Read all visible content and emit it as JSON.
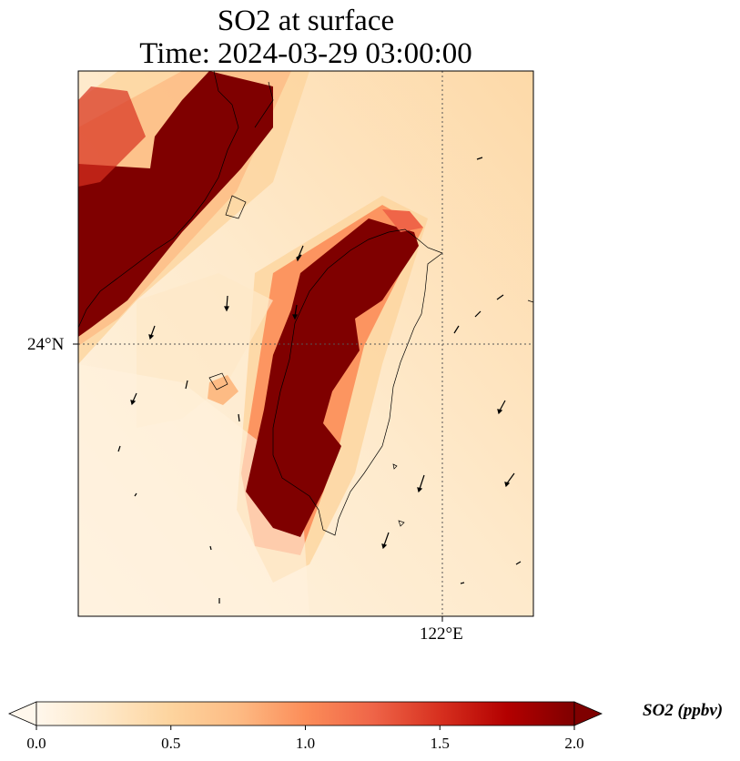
{
  "title": {
    "line1": "SO2 at surface",
    "line2": "Time: 2024-03-29 03:00:00"
  },
  "axes": {
    "lat_tick_label": "24°N",
    "lon_tick_label": "122°E",
    "gridlines": "dotted",
    "coastlines": true
  },
  "chart_data": {
    "type": "heatmap",
    "variable": "SO2",
    "colormap": "OrRd",
    "colormap_stops": [
      "#fff7ec",
      "#fee8c8",
      "#fdd49e",
      "#fdbb84",
      "#fc8d59",
      "#ef6548",
      "#d7301f",
      "#b30000",
      "#7f0000"
    ],
    "color_range": [
      0.0,
      2.0
    ],
    "extend": "both",
    "wind_vectors": true
  },
  "colorbar": {
    "title": "SO2 (ppbv)",
    "ticks": [
      "0.0",
      "0.5",
      "1.0",
      "1.5",
      "2.0"
    ]
  }
}
